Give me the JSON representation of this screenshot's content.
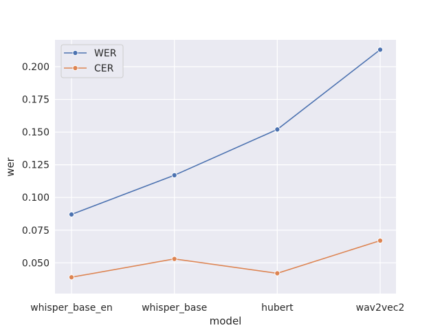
{
  "chart_data": {
    "type": "line",
    "categories": [
      "whisper_base_en",
      "whisper_base",
      "hubert",
      "wav2vec2"
    ],
    "series": [
      {
        "name": "WER",
        "values": [
          0.087,
          0.117,
          0.152,
          0.213
        ],
        "color": "#4c72b0"
      },
      {
        "name": "CER",
        "values": [
          0.039,
          0.053,
          0.042,
          0.067
        ],
        "color": "#dd8452"
      }
    ],
    "xlabel": "model",
    "ylabel": "wer",
    "ylim": [
      0.0265,
      0.2205
    ],
    "yticks": [
      "0.050",
      "0.075",
      "0.100",
      "0.125",
      "0.150",
      "0.175",
      "0.200"
    ],
    "ytick_values": [
      0.05,
      0.075,
      0.1,
      0.125,
      0.15,
      0.175,
      0.2
    ],
    "grid": true,
    "legend_position": "top-left",
    "background": "#eaeaf2",
    "grid_color": "#ffffff"
  }
}
